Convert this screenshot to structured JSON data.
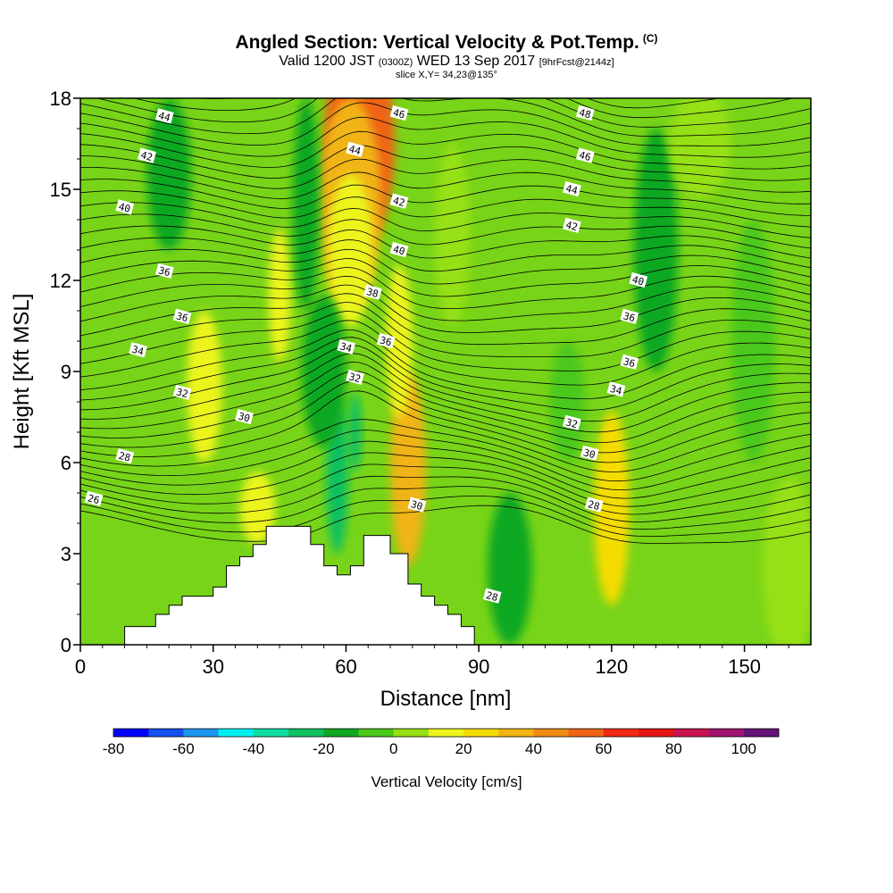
{
  "header": {
    "title": "Angled Section: Vertical Velocity & Pot.Temp.",
    "title_mark": "(C)",
    "valid_a": "Valid 1200 JST ",
    "valid_small1": "(0300Z)",
    "valid_b": " WED 13 Sep 2017 ",
    "valid_small2": "[9hrFcst@2144z]",
    "slice": "slice X,Y= 34,23@135°"
  },
  "chart_data": {
    "type": "heatmap",
    "xlabel": "Distance [nm]",
    "ylabel": "Height [Kft MSL]",
    "xlim": [
      0,
      165
    ],
    "ylim": [
      0,
      18
    ],
    "xticks": [
      0,
      30,
      60,
      90,
      120,
      150
    ],
    "yticks": [
      0,
      3,
      6,
      9,
      12,
      15,
      18
    ],
    "colorbar": {
      "label": "Vertical Velocity [cm/s]",
      "tick_values": [
        -80,
        -60,
        -40,
        -20,
        0,
        20,
        40,
        60,
        80,
        100
      ],
      "tick_labels": [
        "-80",
        "-60",
        "-40",
        "-20",
        "0",
        "20",
        "40",
        "60",
        "80",
        "100"
      ],
      "levels": [
        -80,
        -70,
        -60,
        -50,
        -40,
        -30,
        -20,
        -10,
        0,
        10,
        20,
        30,
        40,
        50,
        60,
        70,
        80,
        90,
        100,
        110
      ],
      "colors": [
        "#0000ff",
        "#1450f0",
        "#1e96f0",
        "#00f0f0",
        "#10dca0",
        "#10c060",
        "#10a820",
        "#4cc81a",
        "#96e014",
        "#ecf41e",
        "#f5dc00",
        "#f0b414",
        "#f08c14",
        "#f06414",
        "#f02814",
        "#e61414",
        "#c81450",
        "#a0146e",
        "#641478"
      ]
    },
    "isentropes": [
      26,
      28,
      30,
      32,
      34,
      36,
      38,
      40,
      42,
      44,
      46,
      48
    ],
    "isentrope_labels": [
      {
        "text": "26",
        "x": 3,
        "y": 4.8
      },
      {
        "text": "28",
        "x": 10,
        "y": 6.2
      },
      {
        "text": "30",
        "x": 37,
        "y": 7.5
      },
      {
        "text": "32",
        "x": 23,
        "y": 8.3
      },
      {
        "text": "34",
        "x": 13,
        "y": 9.7
      },
      {
        "text": "36",
        "x": 23,
        "y": 10.8
      },
      {
        "text": "36",
        "x": 19,
        "y": 12.3
      },
      {
        "text": "40",
        "x": 10,
        "y": 14.4
      },
      {
        "text": "42",
        "x": 15,
        "y": 16.1
      },
      {
        "text": "44",
        "x": 19,
        "y": 17.4
      },
      {
        "text": "46",
        "x": 72,
        "y": 17.5
      },
      {
        "text": "44",
        "x": 62,
        "y": 16.3
      },
      {
        "text": "42",
        "x": 72,
        "y": 14.6
      },
      {
        "text": "40",
        "x": 72,
        "y": 13.0
      },
      {
        "text": "38",
        "x": 66,
        "y": 11.6
      },
      {
        "text": "36",
        "x": 69,
        "y": 10.0
      },
      {
        "text": "34",
        "x": 60,
        "y": 9.8
      },
      {
        "text": "32",
        "x": 62,
        "y": 8.8
      },
      {
        "text": "30",
        "x": 76,
        "y": 4.6
      },
      {
        "text": "28",
        "x": 93,
        "y": 1.6
      },
      {
        "text": "28",
        "x": 116,
        "y": 4.6
      },
      {
        "text": "30",
        "x": 115,
        "y": 6.3
      },
      {
        "text": "32",
        "x": 111,
        "y": 7.3
      },
      {
        "text": "34",
        "x": 121,
        "y": 8.4
      },
      {
        "text": "36",
        "x": 124,
        "y": 9.3
      },
      {
        "text": "36",
        "x": 124,
        "y": 10.8
      },
      {
        "text": "40",
        "x": 126,
        "y": 12.0
      },
      {
        "text": "42",
        "x": 111,
        "y": 13.8
      },
      {
        "text": "44",
        "x": 111,
        "y": 15.0
      },
      {
        "text": "46",
        "x": 114,
        "y": 16.1
      },
      {
        "text": "48",
        "x": 114,
        "y": 17.5
      }
    ],
    "cells": [
      {
        "x": 63,
        "y": 16.5,
        "rx": 8,
        "ry": 3.5,
        "value": 55
      },
      {
        "x": 61,
        "y": 14.5,
        "rx": 7,
        "ry": 3.5,
        "value": 35
      },
      {
        "x": 61,
        "y": 13.0,
        "rx": 5,
        "ry": 2.5,
        "value": 15
      },
      {
        "x": 74,
        "y": 5.8,
        "rx": 4,
        "ry": 3.2,
        "value": 35
      },
      {
        "x": 72,
        "y": 10.0,
        "rx": 3,
        "ry": 2.5,
        "value": 15
      },
      {
        "x": 120,
        "y": 4.5,
        "rx": 4,
        "ry": 3.2,
        "value": 25
      },
      {
        "x": 28,
        "y": 8.5,
        "rx": 4,
        "ry": 2.5,
        "value": 15
      },
      {
        "x": 45,
        "y": 11.5,
        "rx": 2.5,
        "ry": 2.2,
        "value": 15
      },
      {
        "x": 40,
        "y": 4.5,
        "rx": 4,
        "ry": 1.2,
        "value": 15
      },
      {
        "x": 58,
        "y": 5.5,
        "rx": 2.5,
        "ry": 2.5,
        "value": -25
      },
      {
        "x": 62,
        "y": 7.0,
        "rx": 1.5,
        "ry": 1.3,
        "value": -25
      },
      {
        "x": 97,
        "y": 2.5,
        "rx": 5,
        "ry": 2.5,
        "value": -15
      },
      {
        "x": 20,
        "y": 15.5,
        "rx": 5,
        "ry": 2.5,
        "value": -15
      },
      {
        "x": 51,
        "y": 14.5,
        "rx": 3,
        "ry": 3.5,
        "value": -15
      },
      {
        "x": 55,
        "y": 9.0,
        "rx": 5,
        "ry": 2.5,
        "value": -15
      },
      {
        "x": 130,
        "y": 13.0,
        "rx": 5,
        "ry": 4,
        "value": -15
      },
      {
        "x": 110,
        "y": 8.0,
        "rx": 4,
        "ry": 2,
        "value": -5
      },
      {
        "x": 152,
        "y": 10.0,
        "rx": 5,
        "ry": 4,
        "value": -5
      },
      {
        "x": 160,
        "y": 2.5,
        "rx": 6,
        "ry": 3,
        "value": 5
      },
      {
        "x": 140,
        "y": 16.5,
        "rx": 7,
        "ry": 1.8,
        "value": 5
      },
      {
        "x": 84,
        "y": 13.5,
        "rx": 4,
        "ry": 3,
        "value": 5
      }
    ],
    "terrain": [
      [
        10,
        0.6
      ],
      [
        17,
        0.6
      ],
      [
        17,
        1.0
      ],
      [
        20,
        1.0
      ],
      [
        20,
        1.3
      ],
      [
        23,
        1.3
      ],
      [
        23,
        1.6
      ],
      [
        30,
        1.6
      ],
      [
        30,
        1.9
      ],
      [
        33,
        1.9
      ],
      [
        33,
        2.6
      ],
      [
        36,
        2.6
      ],
      [
        36,
        2.9
      ],
      [
        39,
        2.9
      ],
      [
        39,
        3.3
      ],
      [
        42,
        3.3
      ],
      [
        42,
        3.9
      ],
      [
        52,
        3.9
      ],
      [
        52,
        3.3
      ],
      [
        55,
        3.3
      ],
      [
        55,
        2.6
      ],
      [
        58,
        2.6
      ],
      [
        58,
        2.3
      ],
      [
        61,
        2.3
      ],
      [
        61,
        2.6
      ],
      [
        64,
        2.6
      ],
      [
        64,
        3.6
      ],
      [
        70,
        3.6
      ],
      [
        70,
        3.0
      ],
      [
        74,
        3.0
      ],
      [
        74,
        2.0
      ],
      [
        77,
        2.0
      ],
      [
        77,
        1.6
      ],
      [
        80,
        1.6
      ],
      [
        80,
        1.3
      ],
      [
        83,
        1.3
      ],
      [
        83,
        1.0
      ],
      [
        86,
        1.0
      ],
      [
        86,
        0.6
      ],
      [
        89,
        0.6
      ],
      [
        89,
        0.3
      ]
    ],
    "grid": false
  }
}
